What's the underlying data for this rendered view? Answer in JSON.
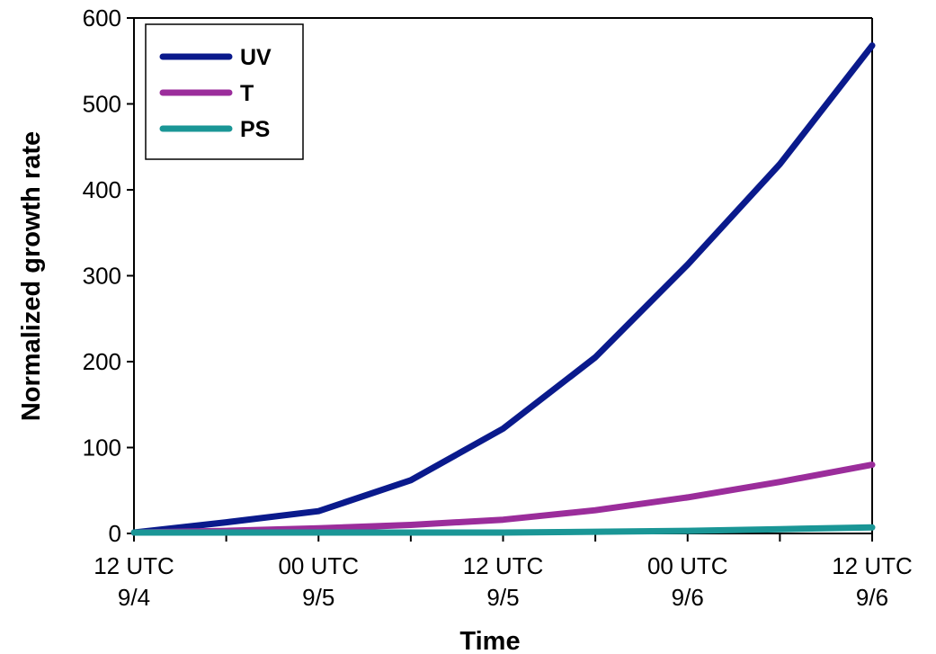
{
  "chart_data": {
    "type": "line",
    "title": "",
    "xlabel": "Time",
    "ylabel": "Normalized growth rate",
    "ylim": [
      0,
      600
    ],
    "y_ticks": [
      "0",
      "100",
      "200",
      "300",
      "400",
      "500",
      "600"
    ],
    "x_ticks": [
      {
        "line1": "12 UTC",
        "line2": "9/4"
      },
      {
        "line1": "00 UTC",
        "line2": "9/5"
      },
      {
        "line1": "12 UTC",
        "line2": "9/5"
      },
      {
        "line1": "00 UTC",
        "line2": "9/6"
      },
      {
        "line1": "12 UTC",
        "line2": "9/6"
      }
    ],
    "x": [
      0,
      6,
      12,
      18,
      24,
      30,
      36,
      42,
      48
    ],
    "x_unit": "hours since 12 UTC 9/4",
    "grid": false,
    "legend_position": "top-left",
    "series": [
      {
        "name": "UV",
        "color": "#0a1a8c",
        "values": [
          1,
          13,
          26,
          62,
          122,
          205,
          313,
          430,
          568
        ]
      },
      {
        "name": "T",
        "color": "#9b2d9b",
        "values": [
          1,
          3,
          6,
          10,
          16,
          27,
          42,
          60,
          80
        ]
      },
      {
        "name": "PS",
        "color": "#1a9696",
        "values": [
          1,
          1,
          1,
          1,
          1,
          2,
          3,
          5,
          7
        ]
      }
    ]
  }
}
